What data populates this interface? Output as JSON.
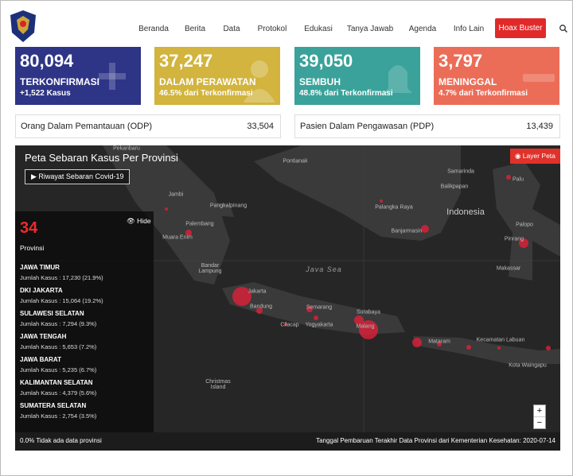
{
  "header": {
    "nav": [
      "Beranda",
      "Berita",
      "Data",
      "Protokol",
      "Edukasi",
      "Tanya Jawab",
      "Agenda",
      "Info Lain"
    ],
    "hoax_button": "Hoax Buster"
  },
  "stats": [
    {
      "value": "80,094",
      "label": "TERKONFIRMASI",
      "sub": "+1,522 Kasus"
    },
    {
      "value": "37,247",
      "label": "DALAM PERAWATAN",
      "sub": "46.5% dari Terkonfirmasi"
    },
    {
      "value": "39,050",
      "label": "SEMBUH",
      "sub": "48.8% dari Terkonfirmasi"
    },
    {
      "value": "3,797",
      "label": "MENINGGAL",
      "sub": "4.7% dari Terkonfirmasi"
    }
  ],
  "monitoring": [
    {
      "label": "Orang Dalam Pemantauan (ODP)",
      "value": "33,504"
    },
    {
      "label": "Pasien Dalam Pengawasan (PDP)",
      "value": "13,439"
    }
  ],
  "map": {
    "title": "Peta Sebaran Kasus Per Provinsi",
    "history_button": "Riwayat Sebaran Covid-19",
    "layer_button": "Layer Peta",
    "panel": {
      "count": "34",
      "unit": "Provinsi",
      "hide": "Hide",
      "items": [
        {
          "name": "JAWA TIMUR",
          "cases": "Jumlah Kasus : 17,230 (21.9%)"
        },
        {
          "name": "DKI JAKARTA",
          "cases": "Jumlah Kasus : 15,064 (19.2%)"
        },
        {
          "name": "SULAWESI SELATAN",
          "cases": "Jumlah Kasus : 7,294 (9.3%)"
        },
        {
          "name": "JAWA TENGAH",
          "cases": "Jumlah Kasus : 5,653 (7.2%)"
        },
        {
          "name": "JAWA BARAT",
          "cases": "Jumlah Kasus : 5,235 (6.7%)"
        },
        {
          "name": "KALIMANTAN SELATAN",
          "cases": "Jumlah Kasus : 4,379 (5.6%)"
        },
        {
          "name": "SUMATERA SELATAN",
          "cases": "Jumlah Kasus : 2,754 (3.5%)"
        }
      ]
    },
    "places": [
      "Pekanbaru",
      "Pontianak",
      "Samarinda",
      "Palu",
      "Jambi",
      "Balikpapan",
      "Pangkalpinang",
      "Palangka Raya",
      "Indonesia",
      "Palembang",
      "Banjarmasin",
      "Muara Enim",
      "Palopo",
      "Pinrang",
      "Bandar Lampung",
      "Java Sea",
      "Makassar",
      "Jakarta",
      "Bandung",
      "Semarang",
      "Surabaya",
      "Cilacap",
      "Yogyakarta",
      "Malang",
      "Mataram",
      "Kecamatan Labuan",
      "Kota Waingapu",
      "Christmas Island"
    ],
    "zoom_in": "+",
    "zoom_out": "−",
    "legend": "0.0% Tidak ada data provinsi",
    "updated": "Tanggal Pembaruan Terakhir Data Provinsi dari Kementerian Kesehatan: 2020-07-14"
  }
}
